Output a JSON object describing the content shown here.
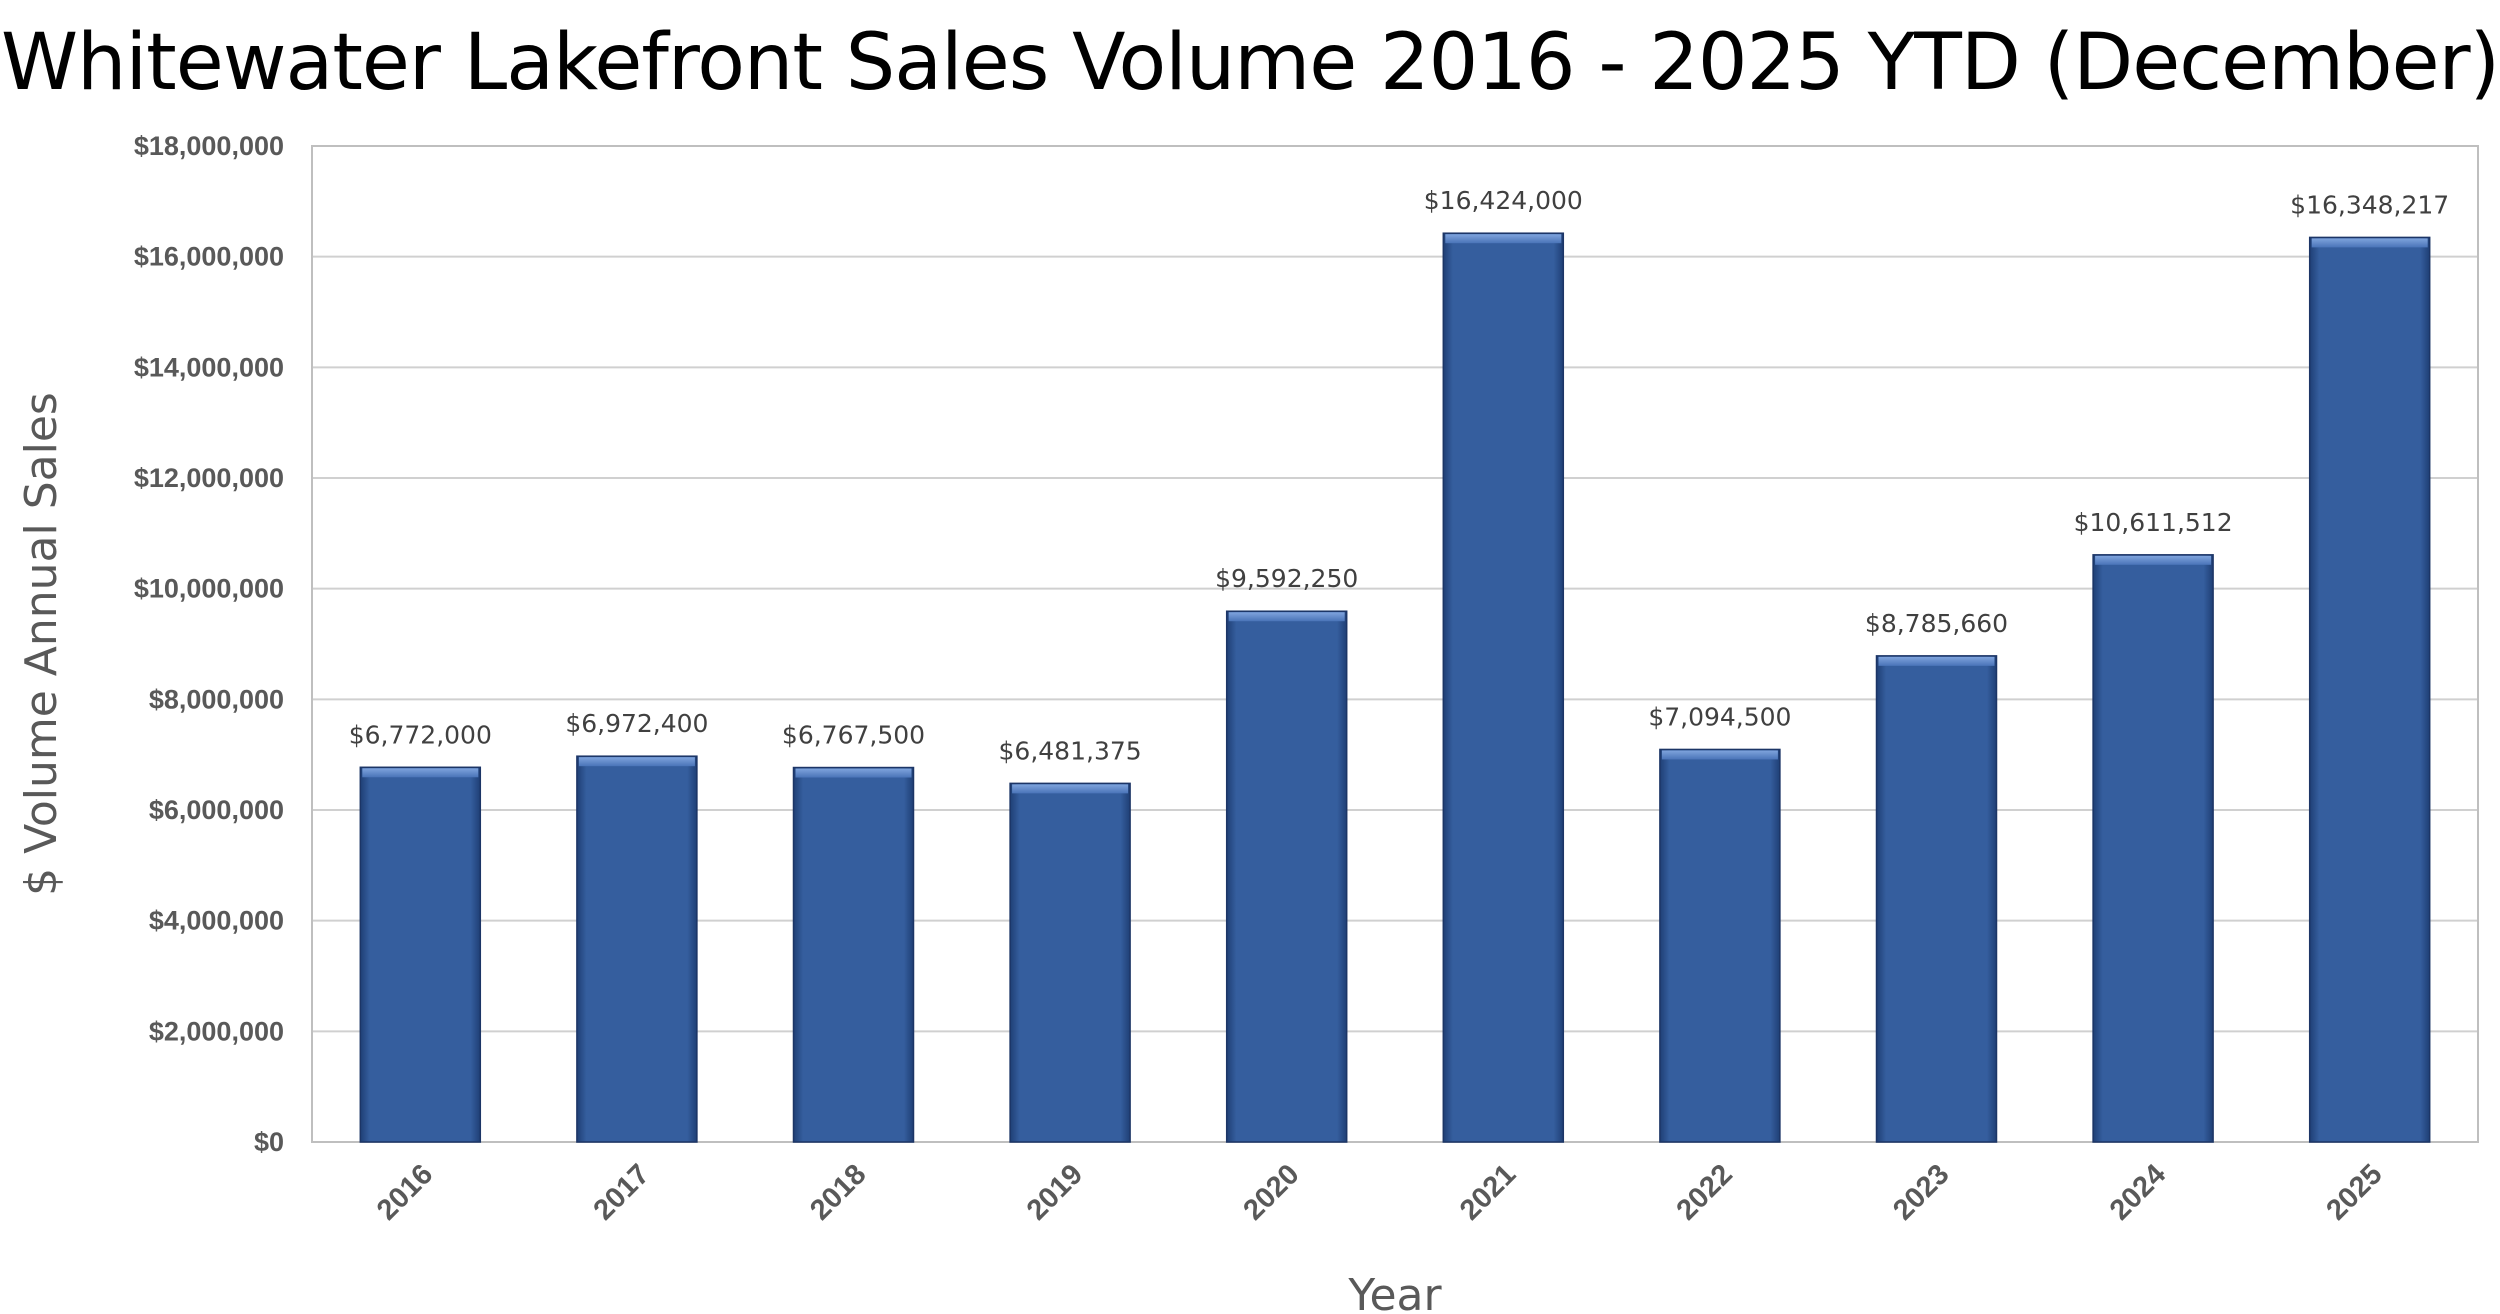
{
  "chart_data": {
    "type": "bar",
    "title": "Whitewater Lakefront Sales Volume 2016 - 2025 YTD (December)",
    "xlabel": "Year",
    "ylabel": "$ Volume Annual Sales",
    "categories": [
      "2016",
      "2017",
      "2018",
      "2019",
      "2020",
      "2021",
      "2022",
      "2023",
      "2024",
      "2025"
    ],
    "values": [
      6772000,
      6972400,
      6767500,
      6481375,
      9592250,
      16424000,
      7094500,
      8785660,
      10611512,
      16348217
    ],
    "data_labels": [
      "$6,772,000",
      "$6,972,400",
      "$6,767,500",
      "$6,481,375",
      "$9,592,250",
      "$16,424,000",
      "$7,094,500",
      "$8,785,660",
      "$10,611,512",
      "$16,348,217"
    ],
    "ylim": [
      0,
      18000000
    ],
    "yticks": [
      0,
      2000000,
      4000000,
      6000000,
      8000000,
      10000000,
      12000000,
      14000000,
      16000000,
      18000000
    ],
    "ytick_labels": [
      "$0",
      "$2,000,000",
      "$4,000,000",
      "$6,000,000",
      "$8,000,000",
      "$10,000,000",
      "$12,000,000",
      "$14,000,000",
      "$16,000,000",
      "$18,000,000"
    ],
    "grid": true,
    "legend": "none",
    "bar_color": "#355E9E"
  }
}
